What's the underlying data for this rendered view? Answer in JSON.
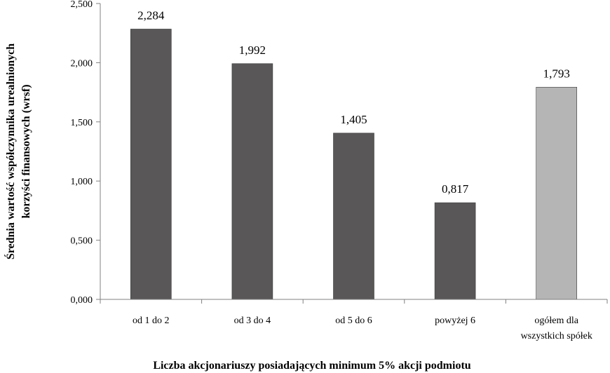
{
  "chart_data": {
    "type": "bar",
    "categories": [
      [
        "od 1 do 2"
      ],
      [
        "od 3 do 4"
      ],
      [
        "od 5 do 6"
      ],
      [
        "powyżej 6"
      ],
      [
        "ogółem dla",
        "wszystkich spółek"
      ]
    ],
    "values": [
      2.284,
      1.992,
      1.405,
      0.817,
      1.793
    ],
    "data_labels": [
      "2,284",
      "1,992",
      "1,405",
      "0,817",
      "1,793"
    ],
    "bar_colors": [
      "#595757",
      "#595757",
      "#595757",
      "#595757",
      "#b5b5b5"
    ],
    "ylim": [
      0,
      2.5
    ],
    "yticks": [
      0,
      0.5,
      1.0,
      1.5,
      2.0,
      2.5
    ],
    "ytick_labels": [
      "0,000",
      "0,500",
      "1,000",
      "1,500",
      "2,000",
      "2,500"
    ],
    "ylabel": [
      "Średnia wartość współczynnika urealnionych",
      "korzyści finansowych (wrsf)"
    ],
    "xlabel": "Liczba akcjonariuszy posiadających minimum 5% akcji podmiotu",
    "grid": false,
    "legend": "none"
  }
}
